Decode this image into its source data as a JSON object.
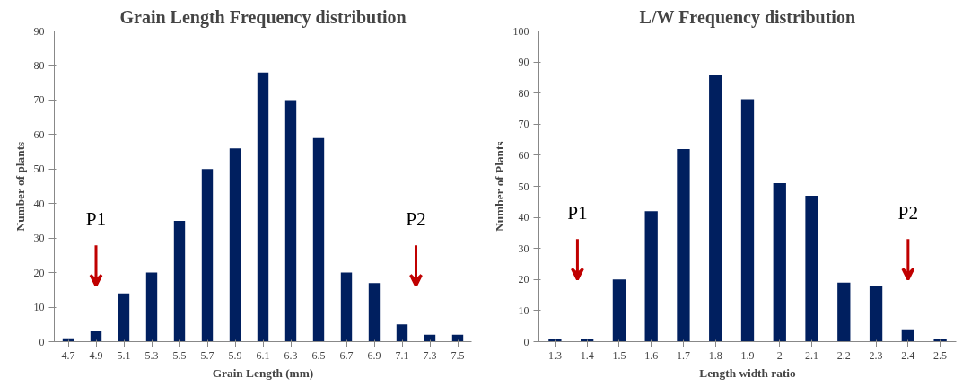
{
  "chart_data": [
    {
      "type": "bar",
      "title": "Grain Length Frequency distribution",
      "xlabel": "Grain Length (mm)",
      "ylabel": "Number of plants",
      "categories": [
        "4.7",
        "4.9",
        "5.1",
        "5.3",
        "5.5",
        "5.7",
        "5.9",
        "6.1",
        "6.3",
        "6.5",
        "6.7",
        "6.9",
        "7.1",
        "7.3",
        "7.5"
      ],
      "values": [
        1,
        3,
        14,
        20,
        35,
        50,
        56,
        78,
        70,
        59,
        20,
        17,
        5,
        2,
        2
      ],
      "color": "#001f5f",
      "ylim": [
        0,
        90
      ],
      "yticks": [
        0,
        10,
        20,
        30,
        40,
        50,
        60,
        70,
        80,
        90
      ],
      "grid": false,
      "annotations": [
        "P1",
        "P2"
      ]
    },
    {
      "type": "bar",
      "title": "L/W Frequency distribution",
      "xlabel": "Length width ratio",
      "ylabel": "Number of Plants",
      "categories": [
        "1.3",
        "1.4",
        "1.5",
        "1.6",
        "1.7",
        "1.8",
        "1.9",
        "2",
        "2.1",
        "2.2",
        "2.3",
        "2.4",
        "2.5"
      ],
      "values": [
        1,
        1,
        20,
        42,
        62,
        86,
        78,
        51,
        47,
        19,
        18,
        4,
        1
      ],
      "color": "#001f5f",
      "ylim": [
        0,
        100
      ],
      "yticks": [
        0,
        10,
        20,
        30,
        40,
        50,
        60,
        70,
        80,
        90,
        100
      ],
      "grid": false,
      "annotations": [
        "P1",
        "P2"
      ]
    }
  ]
}
